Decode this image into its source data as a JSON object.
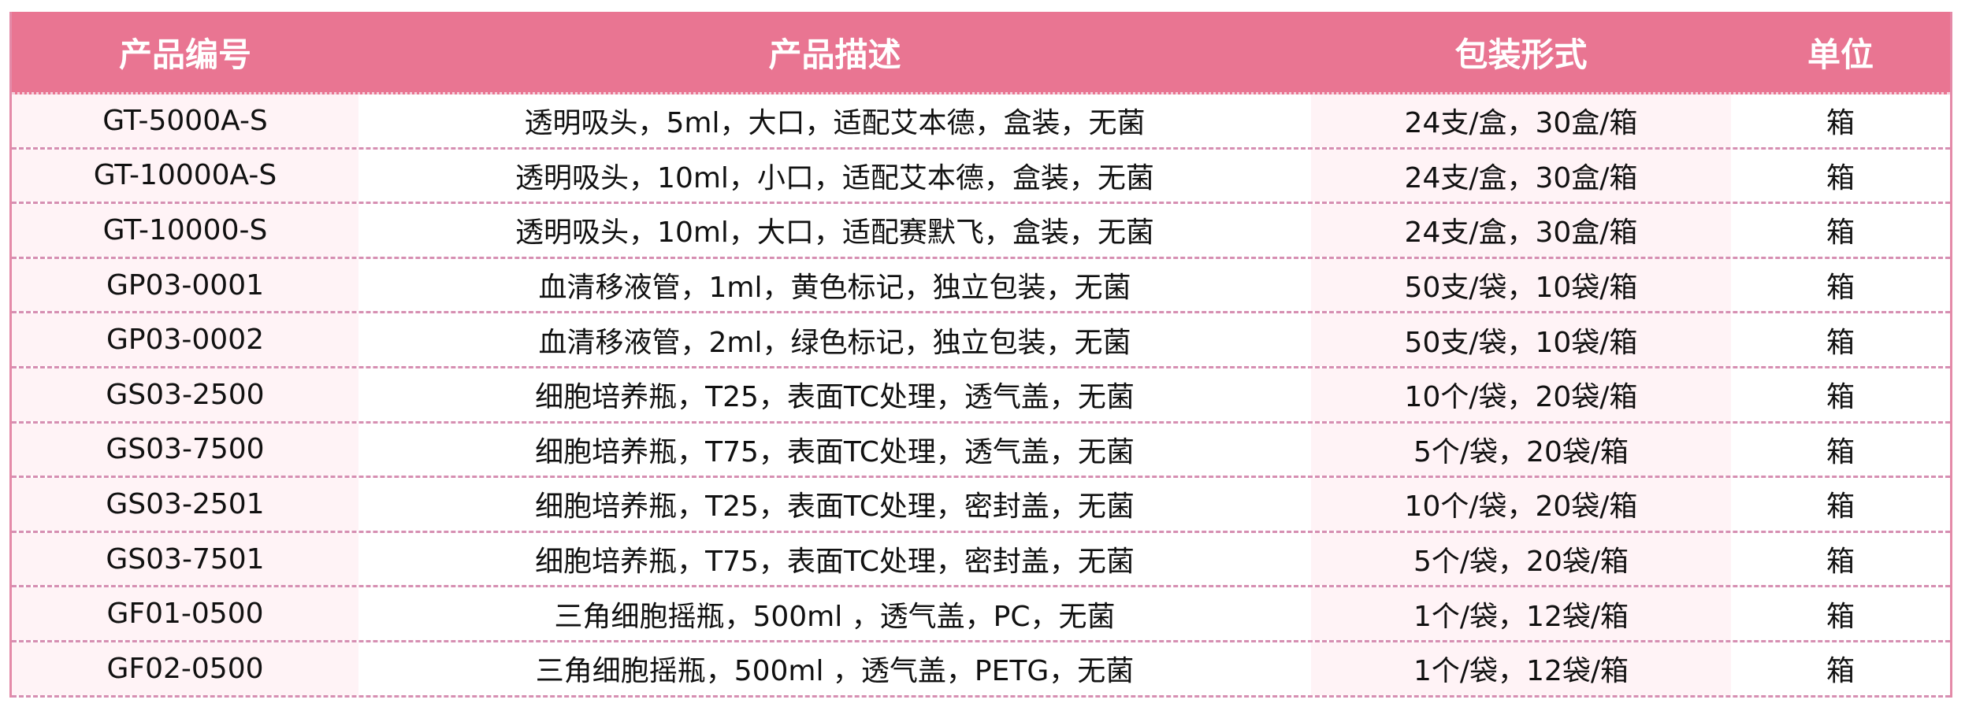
{
  "colors": {
    "header_bg": "#e97592",
    "stripe_bg": "#fff3f6",
    "border": "#d68fb2"
  },
  "table": {
    "headers": [
      "产品编号",
      "产品描述",
      "包装形式",
      "单位"
    ],
    "rows": [
      [
        "GT-5000A-S",
        "透明吸头，5ml，大口，适配艾本德，盒装，无菌",
        "24支/盒，30盒/箱",
        "箱"
      ],
      [
        "GT-10000A-S",
        "透明吸头，10ml，小口，适配艾本德，盒装，无菌",
        "24支/盒，30盒/箱",
        "箱"
      ],
      [
        "GT-10000-S",
        "透明吸头，10ml，大口，适配赛默飞，盒装，无菌",
        "24支/盒，30盒/箱",
        "箱"
      ],
      [
        "GP03-0001",
        "血清移液管，1ml，黄色标记，独立包装，无菌",
        "50支/袋，10袋/箱",
        "箱"
      ],
      [
        "GP03-0002",
        "血清移液管，2ml，绿色标记，独立包装，无菌",
        "50支/袋，10袋/箱",
        "箱"
      ],
      [
        "GS03-2500",
        "细胞培养瓶，T25，表面TC处理，透气盖，无菌",
        "10个/袋，20袋/箱",
        "箱"
      ],
      [
        "GS03-7500",
        "细胞培养瓶，T75，表面TC处理，透气盖，无菌",
        "5个/袋，20袋/箱",
        "箱"
      ],
      [
        "GS03-2501",
        "细胞培养瓶，T25，表面TC处理，密封盖，无菌",
        "10个/袋，20袋/箱",
        "箱"
      ],
      [
        "GS03-7501",
        "细胞培养瓶，T75，表面TC处理，密封盖，无菌",
        "5个/袋，20袋/箱",
        "箱"
      ],
      [
        "GF01-0500",
        "三角细胞摇瓶，500ml ，透气盖，PC，无菌",
        "1个/袋，12袋/箱",
        "箱"
      ],
      [
        "GF02-0500",
        "三角细胞摇瓶，500ml ，透气盖，PETG，无菌",
        "1个/袋，12袋/箱",
        "箱"
      ]
    ]
  }
}
